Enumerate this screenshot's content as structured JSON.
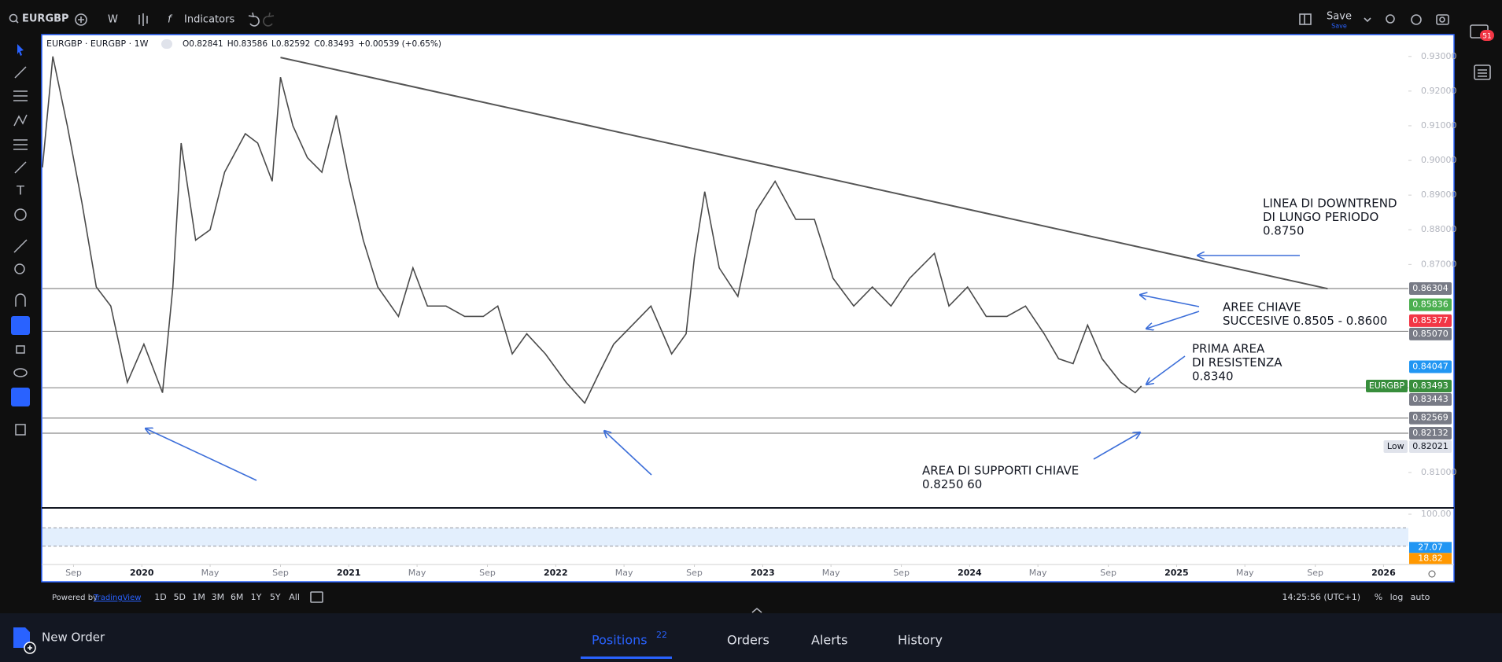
{
  "toolbar": {
    "symbol": "EURGBP",
    "interval": "W",
    "indicators": "Indicators",
    "save": "Save",
    "save_sub": "Save",
    "notifications": 51
  },
  "chart_data": {
    "type": "line",
    "title": "EURGBP · EURGBP · 1W",
    "ohlc_legend": [
      "O0.82841",
      "H0.83586",
      "L0.82592",
      "C0.83493",
      "+0.00539 (+0.65%)"
    ],
    "x": [
      2019.52,
      2019.57,
      2019.64,
      2019.71,
      2019.78,
      2019.85,
      2019.93,
      2020.01,
      2020.1,
      2020.15,
      2020.19,
      2020.26,
      2020.33,
      2020.4,
      2020.5,
      2020.56,
      2020.63,
      2020.67,
      2020.73,
      2020.8,
      2020.87,
      2020.94,
      2021.0,
      2021.07,
      2021.14,
      2021.24,
      2021.31,
      2021.38,
      2021.47,
      2021.56,
      2021.65,
      2021.72,
      2021.79,
      2021.86,
      2021.95,
      2022.05,
      2022.14,
      2022.21,
      2022.28,
      2022.37,
      2022.46,
      2022.56,
      2022.63,
      2022.67,
      2022.72,
      2022.79,
      2022.88,
      2022.97,
      2023.06,
      2023.16,
      2023.25,
      2023.34,
      2023.44,
      2023.53,
      2023.62,
      2023.71,
      2023.83,
      2023.9,
      2023.99,
      2024.08,
      2024.18,
      2024.27,
      2024.36,
      2024.43,
      2024.5,
      2024.57,
      2024.64,
      2024.73,
      2024.8,
      2024.83
    ],
    "series": [
      {
        "color": "#4a4a4a",
        "values": [
          0.898,
          0.93,
          0.91,
          0.888,
          0.8635,
          0.858,
          0.836,
          0.847,
          0.833,
          0.8635,
          0.905,
          0.877,
          0.88,
          0.8966,
          0.9077,
          0.905,
          0.894,
          0.924,
          0.91,
          0.9008,
          0.8966,
          0.913,
          0.895,
          0.877,
          0.8635,
          0.855,
          0.869,
          0.858,
          0.858,
          0.855,
          0.855,
          0.858,
          0.8442,
          0.85,
          0.8442,
          0.836,
          0.83,
          0.8387,
          0.847,
          0.8525,
          0.858,
          0.8442,
          0.85,
          0.872,
          0.891,
          0.869,
          0.8608,
          0.8856,
          0.894,
          0.883,
          0.883,
          0.866,
          0.858,
          0.8635,
          0.858,
          0.866,
          0.8732,
          0.858,
          0.8635,
          0.855,
          0.855,
          0.858,
          0.85,
          0.8428,
          0.8414,
          0.8525,
          0.8428,
          0.836,
          0.833,
          0.83493
        ]
      }
    ],
    "xlim": [
      2019.52,
      2026.12
    ],
    "xticks": [
      {
        "value": 2019.67,
        "label": "Sep"
      },
      2020,
      {
        "value": 2020.33,
        "label": "May"
      },
      {
        "value": 2020.67,
        "label": "Sep"
      },
      2021,
      {
        "value": 2021.33,
        "label": "May"
      },
      {
        "value": 2021.67,
        "label": "Sep"
      },
      2022,
      {
        "value": 2022.33,
        "label": "May"
      },
      {
        "value": 2022.67,
        "label": "Sep"
      },
      2023,
      {
        "value": 2023.33,
        "label": "May"
      },
      {
        "value": 2023.67,
        "label": "Sep"
      },
      2024,
      {
        "value": 2024.33,
        "label": "May"
      },
      {
        "value": 2024.67,
        "label": "Sep"
      },
      2025,
      {
        "value": 2025.33,
        "label": "May"
      },
      {
        "value": 2025.67,
        "label": "Sep"
      },
      2026
    ],
    "ylim": [
      0.8,
      0.9363
    ],
    "yticks": [
      {
        "value": 0.93,
        "label": "0.93000"
      },
      {
        "value": 0.92,
        "label": "0.92000"
      },
      {
        "value": 0.91,
        "label": "0.91000"
      },
      {
        "value": 0.9,
        "label": "0.90000"
      },
      {
        "value": 0.89,
        "label": "0.89000"
      },
      {
        "value": 0.88,
        "label": "0.88000"
      },
      {
        "value": 0.87,
        "label": "0.87000"
      },
      {
        "value": 0.81,
        "label": "0.81000"
      }
    ],
    "price_labels": [
      {
        "value": 0.86304,
        "label": "0.86304",
        "color": "#787b86",
        "line": true
      },
      {
        "value": 0.85836,
        "label": "0.85836",
        "color": "#4caf50"
      },
      {
        "value": 0.85377,
        "label": "0.85377",
        "color": "#f23645"
      },
      {
        "value": 0.8507,
        "label": "0.85070",
        "color": "#787b86",
        "line": true
      },
      {
        "value": 0.84047,
        "label": "0.84047",
        "color": "#2196f3"
      },
      {
        "value": 0.83493,
        "label": "0.83493",
        "color": "#388e3c",
        "tag": "EURGBP"
      },
      {
        "value": 0.83443,
        "label": "0.83443",
        "color": "#787b86",
        "line": true
      },
      {
        "value": 0.82569,
        "label": "0.82569",
        "color": "#787b86",
        "line": true
      },
      {
        "value": 0.82132,
        "label": "0.82132",
        "color": "#787b86",
        "line": true
      },
      {
        "value": 0.82021,
        "label": "0.82021",
        "color": "#e0e3eb",
        "text_color": "#131722",
        "tag": "Low"
      }
    ],
    "trendline": {
      "x": [
        2020.67,
        2025.73
      ],
      "values": [
        0.9297,
        0.863
      ],
      "color": "#555555"
    },
    "annotations": [
      {
        "lines": [
          "LINEA DI DOWNTREND",
          "DI LUNGO PERIODO",
          "0.8750"
        ]
      },
      {
        "lines": [
          "AREE CHIAVE",
          "SUCCESIVE 0.8505  - 0.8600"
        ]
      },
      {
        "lines": [
          "PRIMA AREA",
          "DI RESISTENZA",
          "0.8340"
        ]
      },
      {
        "lines": [
          "AREA DI SUPPORTI CHIAVE",
          "0.8250 60"
        ]
      }
    ],
    "rsi": {
      "ylim": [
        0,
        100
      ],
      "yticks": [
        {
          "value": 100,
          "label": "100.00"
        }
      ],
      "band": [
        30,
        70
      ],
      "labels": [
        {
          "value": 27.07,
          "label": "27.07",
          "color": "#2196f3"
        },
        {
          "value": 18.82,
          "label": "18.82",
          "color": "#ff9800"
        }
      ]
    }
  },
  "bottom_toolbar": {
    "powered_by": "Powered by",
    "brand": "TradingView",
    "ranges": [
      "1D",
      "5D",
      "1M",
      "3M",
      "6M",
      "1Y",
      "5Y",
      "All"
    ],
    "clock": "14:25:56 (UTC+1)",
    "options": [
      "%",
      "log",
      "auto"
    ]
  },
  "panel": {
    "new_order": "New Order",
    "tabs": [
      {
        "label": "Positions",
        "count": 22
      },
      {
        "label": "Orders"
      },
      {
        "label": "Alerts"
      },
      {
        "label": "History"
      }
    ]
  }
}
